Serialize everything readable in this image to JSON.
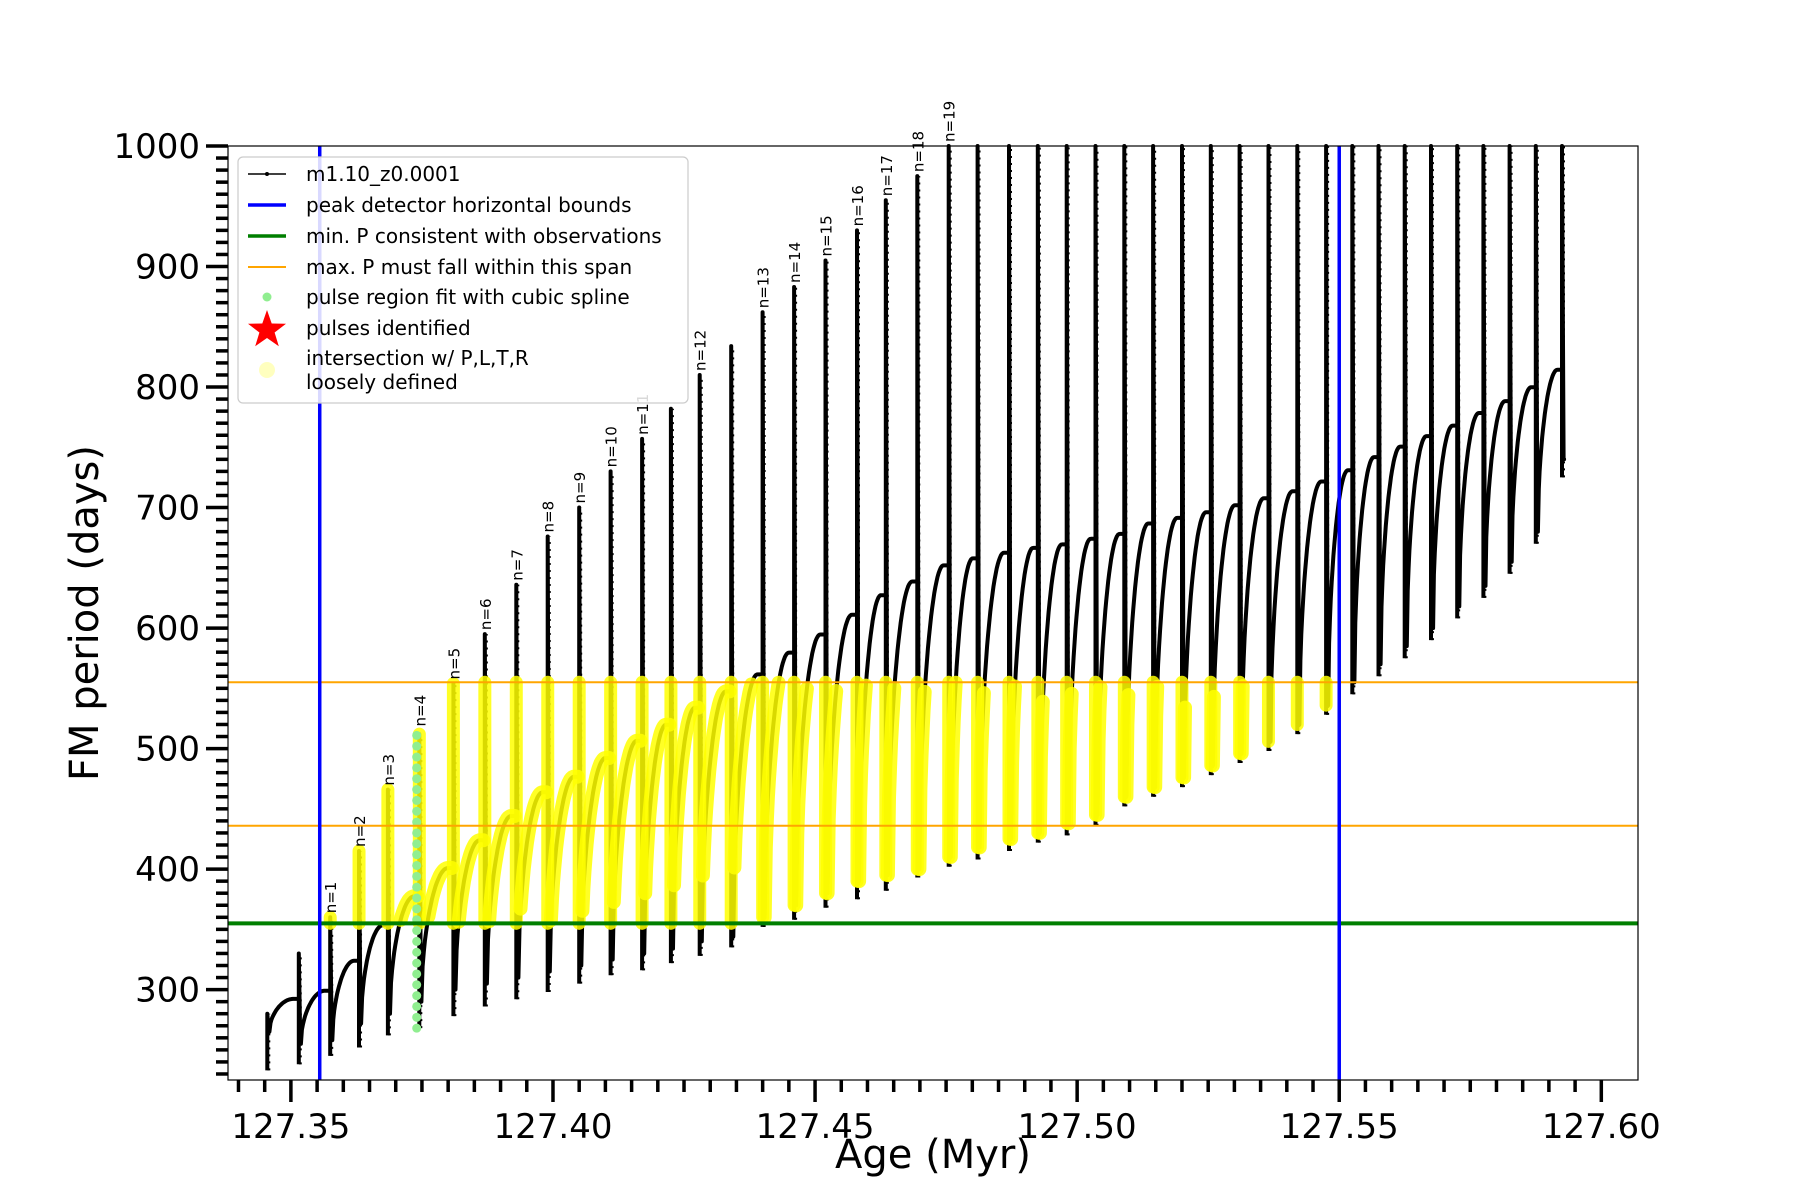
{
  "chart_data": {
    "type": "line",
    "xlabel": "Age (Myr)",
    "ylabel": "FM period (days)",
    "xlim": [
      127.338,
      127.607
    ],
    "ylim": [
      225,
      1000
    ],
    "xticks": [
      "127.35",
      "127.40",
      "127.45",
      "127.50",
      "127.55",
      "127.60"
    ],
    "yticks": [
      "300",
      "400",
      "500",
      "600",
      "700",
      "800",
      "900",
      "1000"
    ],
    "grid": false,
    "legend_position": "upper-left",
    "colors": {
      "track": "#000000",
      "bounds": "#0000ff",
      "min_p": "#007f00",
      "max_p": "#ffa500",
      "spline": "#90ee90",
      "pulse": "#ff0000",
      "loose": "#ffff00"
    },
    "legend": [
      {
        "label": "m1.10_z0.0001",
        "kind": "line-marker"
      },
      {
        "label": "peak detector horizontal bounds",
        "kind": "blue-line"
      },
      {
        "label": "min. P consistent with observations",
        "kind": "green-line"
      },
      {
        "label": "max. P must fall within this span",
        "kind": "orange-line"
      },
      {
        "label": "pulse region fit with cubic spline",
        "kind": "green-dot"
      },
      {
        "label": "pulses identified",
        "kind": "red-star"
      },
      {
        "label": "intersection w/ P,L,T,R",
        "label2": "loosely defined",
        "kind": "yellow-dot"
      }
    ],
    "peak_detector_bounds_x": [
      127.3555,
      127.55
    ],
    "min_period": 355,
    "max_period_span": [
      436,
      555
    ],
    "spline_fit_x": 127.374,
    "spline_fit_range": [
      268,
      512
    ],
    "pulse_labels": [
      {
        "label": "n=1",
        "x": 127.3575,
        "y": 360
      },
      {
        "label": "n=2",
        "x": 127.363,
        "y": 415
      },
      {
        "label": "n=3",
        "x": 127.3685,
        "y": 466
      },
      {
        "label": "n=4",
        "x": 127.3745,
        "y": 515
      },
      {
        "label": "n=5",
        "x": 127.381,
        "y": 554
      },
      {
        "label": "n=6",
        "x": 127.387,
        "y": 595
      },
      {
        "label": "n=7",
        "x": 127.393,
        "y": 636
      },
      {
        "label": "n=8",
        "x": 127.399,
        "y": 676
      },
      {
        "label": "n=9",
        "x": 127.405,
        "y": 700
      },
      {
        "label": "n=10",
        "x": 127.411,
        "y": 730
      },
      {
        "label": "n=11",
        "x": 127.417,
        "y": 757
      },
      {
        "label": "n=12",
        "x": 127.428,
        "y": 810
      },
      {
        "label": "n=13",
        "x": 127.44,
        "y": 862
      },
      {
        "label": "n=14",
        "x": 127.446,
        "y": 883
      },
      {
        "label": "n=15",
        "x": 127.452,
        "y": 905
      },
      {
        "label": "n=16",
        "x": 127.458,
        "y": 930
      },
      {
        "label": "n=17",
        "x": 127.4635,
        "y": 955
      },
      {
        "label": "n=18",
        "x": 127.4695,
        "y": 975
      },
      {
        "label": "n=19",
        "x": 127.4755,
        "y": 1000
      }
    ],
    "pulses": [
      {
        "x": 127.3455,
        "base": 233,
        "peak": 280,
        "tail": 265
      },
      {
        "x": 127.3515,
        "base": 238,
        "peak": 330,
        "tail": 255
      },
      {
        "x": 127.3575,
        "base": 245,
        "peak": 360,
        "tail": 258
      },
      {
        "x": 127.363,
        "base": 252,
        "peak": 415,
        "tail": 272
      },
      {
        "x": 127.3685,
        "base": 262,
        "peak": 466,
        "tail": 280
      },
      {
        "x": 127.3745,
        "base": 268,
        "peak": 512,
        "tail": 290
      },
      {
        "x": 127.381,
        "base": 278,
        "peak": 554,
        "tail": 300
      },
      {
        "x": 127.387,
        "base": 286,
        "peak": 595,
        "tail": 305
      },
      {
        "x": 127.393,
        "base": 292,
        "peak": 636,
        "tail": 310
      },
      {
        "x": 127.399,
        "base": 298,
        "peak": 676,
        "tail": 315
      },
      {
        "x": 127.405,
        "base": 305,
        "peak": 700,
        "tail": 320
      },
      {
        "x": 127.411,
        "base": 312,
        "peak": 730,
        "tail": 325
      },
      {
        "x": 127.417,
        "base": 316,
        "peak": 757,
        "tail": 330
      },
      {
        "x": 127.4225,
        "base": 322,
        "peak": 782,
        "tail": 334
      },
      {
        "x": 127.428,
        "base": 328,
        "peak": 810,
        "tail": 340
      },
      {
        "x": 127.434,
        "base": 335,
        "peak": 834,
        "tail": 344
      },
      {
        "x": 127.44,
        "base": 352,
        "peak": 862,
        "tail": 360
      },
      {
        "x": 127.446,
        "base": 358,
        "peak": 883,
        "tail": 370
      },
      {
        "x": 127.452,
        "base": 368,
        "peak": 905,
        "tail": 380
      },
      {
        "x": 127.458,
        "base": 375,
        "peak": 930,
        "tail": 390
      },
      {
        "x": 127.4635,
        "base": 382,
        "peak": 955,
        "tail": 395
      },
      {
        "x": 127.4695,
        "base": 393,
        "peak": 975,
        "tail": 400
      },
      {
        "x": 127.4755,
        "base": 402,
        "peak": 1000,
        "tail": 410
      },
      {
        "x": 127.481,
        "base": 408,
        "peak": 1000,
        "tail": 418
      },
      {
        "x": 127.487,
        "base": 415,
        "peak": 1000,
        "tail": 425
      },
      {
        "x": 127.4925,
        "base": 422,
        "peak": 1000,
        "tail": 430
      },
      {
        "x": 127.498,
        "base": 428,
        "peak": 1000,
        "tail": 438
      },
      {
        "x": 127.5035,
        "base": 436,
        "peak": 1000,
        "tail": 445
      },
      {
        "x": 127.509,
        "base": 452,
        "peak": 1000,
        "tail": 460
      },
      {
        "x": 127.5145,
        "base": 460,
        "peak": 1000,
        "tail": 468
      },
      {
        "x": 127.52,
        "base": 468,
        "peak": 1000,
        "tail": 476
      },
      {
        "x": 127.5255,
        "base": 478,
        "peak": 1000,
        "tail": 486
      },
      {
        "x": 127.531,
        "base": 488,
        "peak": 1000,
        "tail": 496
      },
      {
        "x": 127.5365,
        "base": 498,
        "peak": 1000,
        "tail": 506
      },
      {
        "x": 127.542,
        "base": 512,
        "peak": 1000,
        "tail": 520
      },
      {
        "x": 127.5475,
        "base": 528,
        "peak": 1000,
        "tail": 536
      },
      {
        "x": 127.5525,
        "base": 545,
        "peak": 1000,
        "tail": 555
      },
      {
        "x": 127.5575,
        "base": 560,
        "peak": 1000,
        "tail": 570
      },
      {
        "x": 127.5625,
        "base": 575,
        "peak": 1000,
        "tail": 585
      },
      {
        "x": 127.5675,
        "base": 590,
        "peak": 1000,
        "tail": 600
      },
      {
        "x": 127.5725,
        "base": 608,
        "peak": 1000,
        "tail": 618
      },
      {
        "x": 127.5775,
        "base": 625,
        "peak": 1000,
        "tail": 635
      },
      {
        "x": 127.5825,
        "base": 645,
        "peak": 1000,
        "tail": 655
      },
      {
        "x": 127.5875,
        "base": 670,
        "peak": 1000,
        "tail": 680
      },
      {
        "x": 127.5925,
        "base": 725,
        "peak": 1000,
        "tail": 740
      }
    ]
  }
}
